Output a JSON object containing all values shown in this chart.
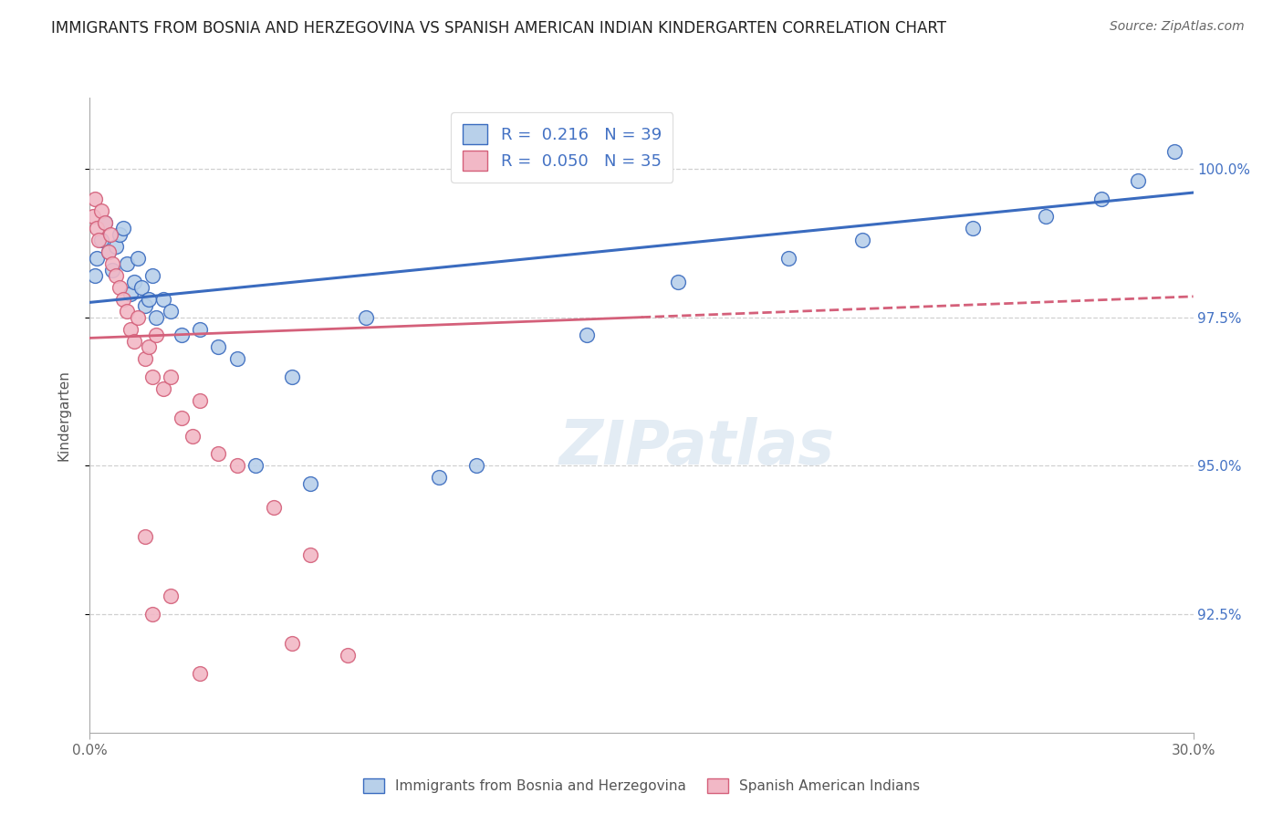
{
  "title": "IMMIGRANTS FROM BOSNIA AND HERZEGOVINA VS SPANISH AMERICAN INDIAN KINDERGARTEN CORRELATION CHART",
  "source": "Source: ZipAtlas.com",
  "ylabel": "Kindergarten",
  "xlim": [
    0.0,
    30.0
  ],
  "ylim": [
    90.5,
    101.2
  ],
  "yticks": [
    92.5,
    95.0,
    97.5,
    100.0
  ],
  "ytick_labels": [
    "92.5%",
    "95.0%",
    "97.5%",
    "100.0%"
  ],
  "legend_labels": [
    "Immigrants from Bosnia and Herzegovina",
    "Spanish American Indians"
  ],
  "legend_R": [
    0.216,
    0.05
  ],
  "legend_N": [
    39,
    35
  ],
  "blue_color": "#b8d0ea",
  "pink_color": "#f2b8c6",
  "blue_line_color": "#3a6bbf",
  "pink_line_color": "#d4607a",
  "blue_trend_x0": 0.0,
  "blue_trend_y0": 97.75,
  "blue_trend_x1": 30.0,
  "blue_trend_y1": 99.6,
  "pink_trend_x0": 0.0,
  "pink_trend_y0": 97.15,
  "pink_trend_x1": 30.0,
  "pink_trend_y1": 97.85,
  "pink_solid_end_x": 15.0,
  "blue_scatter_x": [
    0.15,
    0.2,
    0.3,
    0.4,
    0.5,
    0.6,
    0.7,
    0.8,
    0.9,
    1.0,
    1.1,
    1.2,
    1.3,
    1.4,
    1.5,
    1.6,
    1.7,
    1.8,
    2.0,
    2.2,
    2.5,
    3.0,
    3.5,
    4.0,
    4.5,
    5.5,
    6.0,
    7.5,
    9.5,
    10.5,
    13.5,
    16.0,
    19.0,
    21.0,
    24.0,
    26.0,
    27.5,
    28.5,
    29.5
  ],
  "blue_scatter_y": [
    98.2,
    98.5,
    98.8,
    99.1,
    98.6,
    98.3,
    98.7,
    98.9,
    99.0,
    98.4,
    97.9,
    98.1,
    98.5,
    98.0,
    97.7,
    97.8,
    98.2,
    97.5,
    97.8,
    97.6,
    97.2,
    97.3,
    97.0,
    96.8,
    95.0,
    96.5,
    94.7,
    97.5,
    94.8,
    95.0,
    97.2,
    98.1,
    98.5,
    98.8,
    99.0,
    99.2,
    99.5,
    99.8,
    100.3
  ],
  "pink_scatter_x": [
    0.1,
    0.15,
    0.2,
    0.25,
    0.3,
    0.4,
    0.5,
    0.55,
    0.6,
    0.7,
    0.8,
    0.9,
    1.0,
    1.1,
    1.2,
    1.3,
    1.5,
    1.6,
    1.7,
    1.8,
    2.0,
    2.2,
    2.5,
    2.8,
    3.0,
    3.5,
    4.0,
    5.0,
    6.0,
    1.5,
    1.7,
    2.2,
    3.0,
    5.5,
    7.0
  ],
  "pink_scatter_y": [
    99.2,
    99.5,
    99.0,
    98.8,
    99.3,
    99.1,
    98.6,
    98.9,
    98.4,
    98.2,
    98.0,
    97.8,
    97.6,
    97.3,
    97.1,
    97.5,
    96.8,
    97.0,
    96.5,
    97.2,
    96.3,
    96.5,
    95.8,
    95.5,
    96.1,
    95.2,
    95.0,
    94.3,
    93.5,
    93.8,
    92.5,
    92.8,
    91.5,
    92.0,
    91.8
  ],
  "background_color": "#ffffff",
  "grid_color": "#d0d0d0",
  "title_fontsize": 12,
  "source_fontsize": 10,
  "axis_label_fontsize": 11,
  "tick_fontsize": 11,
  "legend_fontsize": 13
}
